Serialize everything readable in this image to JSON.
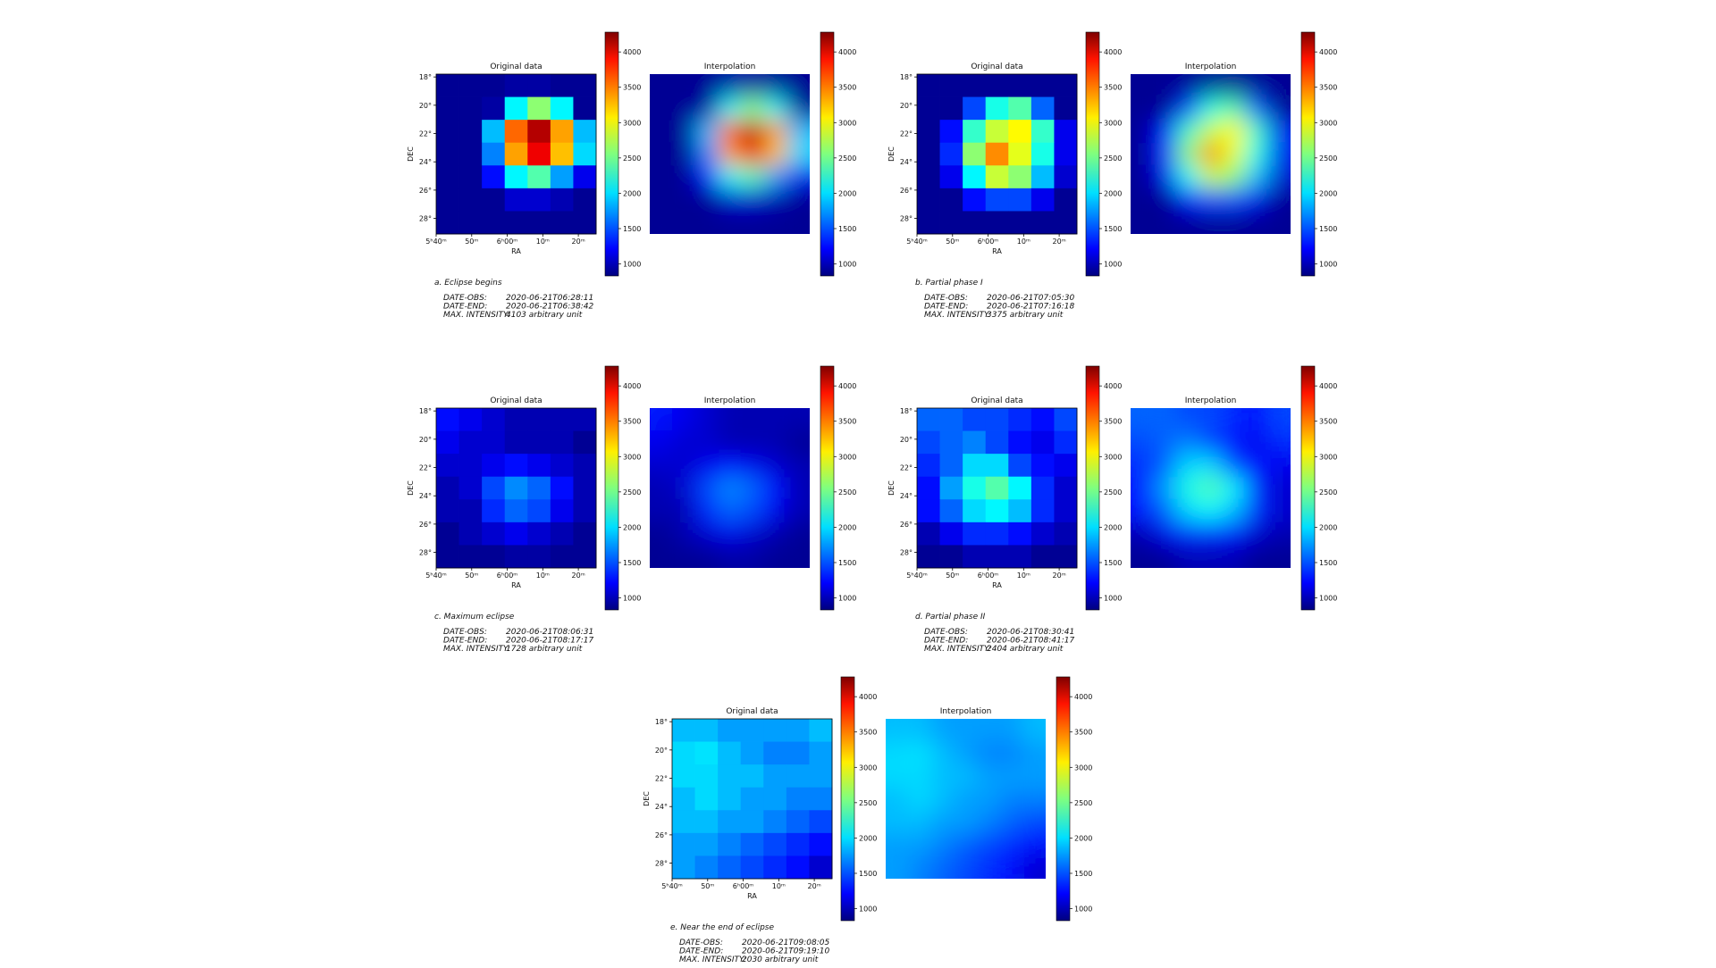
{
  "chart_data": [
    {
      "type": "heatmap",
      "title": "Original data",
      "interpolation_title": "Interpolation",
      "xlabel": "RA",
      "ylabel": "DEC",
      "xlim": [
        340,
        385
      ],
      "ylim": [
        17.8,
        29.1
      ],
      "xticks": [
        {
          "value": 340,
          "label": "5ʰ40ᵐ"
        },
        {
          "value": 350,
          "label": "50ᵐ"
        },
        {
          "value": 360,
          "label": "6ʰ00ᵐ"
        },
        {
          "value": 370,
          "label": "10ᵐ"
        },
        {
          "value": 380,
          "label": "20ᵐ"
        }
      ],
      "yticks": [
        {
          "value": 18,
          "label": "18°"
        },
        {
          "value": 20,
          "label": "20°"
        },
        {
          "value": 22,
          "label": "22°"
        },
        {
          "value": 24,
          "label": "24°"
        },
        {
          "value": 26,
          "label": "26°"
        },
        {
          "value": 28,
          "label": "28°"
        }
      ],
      "clim": [
        830,
        4280
      ],
      "cticks": [
        1000,
        1500,
        2000,
        2500,
        3000,
        3500,
        4000
      ],
      "values": [
        [
          900,
          900,
          900,
          950,
          950,
          900,
          900
        ],
        [
          900,
          900,
          950,
          2100,
          2600,
          2100,
          900
        ],
        [
          900,
          900,
          1900,
          3500,
          4103,
          3300,
          1900
        ],
        [
          900,
          900,
          1700,
          3300,
          3900,
          3200,
          2000
        ],
        [
          900,
          900,
          1300,
          2100,
          2400,
          1800,
          1200
        ],
        [
          900,
          900,
          900,
          1100,
          1100,
          1000,
          900
        ],
        [
          900,
          900,
          900,
          900,
          900,
          900,
          900
        ]
      ],
      "caption": "a. Eclipse begins",
      "info": [
        {
          "key": "DATE-OBS:",
          "value": "2020-06-21T06:28:11"
        },
        {
          "key": "DATE-END:",
          "value": "2020-06-21T06:38:42"
        },
        {
          "key": "MAX. INTENSITY:",
          "value": "4103 arbitrary unit"
        }
      ]
    },
    {
      "type": "heatmap",
      "title": "Original data",
      "interpolation_title": "Interpolation",
      "xlabel": "RA",
      "ylabel": "DEC",
      "xlim": [
        340,
        385
      ],
      "ylim": [
        17.8,
        29.1
      ],
      "xticks": [
        {
          "value": 340,
          "label": "5ʰ40ᵐ"
        },
        {
          "value": 350,
          "label": "50ᵐ"
        },
        {
          "value": 360,
          "label": "6ʰ00ᵐ"
        },
        {
          "value": 370,
          "label": "10ᵐ"
        },
        {
          "value": 380,
          "label": "20ᵐ"
        }
      ],
      "yticks": [
        {
          "value": 18,
          "label": "18°"
        },
        {
          "value": 20,
          "label": "20°"
        },
        {
          "value": 22,
          "label": "22°"
        },
        {
          "value": 24,
          "label": "24°"
        },
        {
          "value": 26,
          "label": "26°"
        },
        {
          "value": 28,
          "label": "28°"
        }
      ],
      "clim": [
        830,
        4280
      ],
      "cticks": [
        1000,
        1500,
        2000,
        2500,
        3000,
        3500,
        4000
      ],
      "values": [
        [
          900,
          900,
          900,
          900,
          900,
          900,
          900
        ],
        [
          900,
          900,
          1500,
          2200,
          2400,
          1600,
          900
        ],
        [
          900,
          1300,
          2300,
          2800,
          3000,
          2300,
          1200
        ],
        [
          900,
          1400,
          2600,
          3375,
          2900,
          2200,
          1200
        ],
        [
          900,
          1200,
          2100,
          2800,
          2600,
          1900,
          1100
        ],
        [
          900,
          900,
          1300,
          1500,
          1500,
          1200,
          900
        ],
        [
          900,
          900,
          900,
          900,
          900,
          900,
          900
        ]
      ],
      "caption": "b. Partial phase I",
      "info": [
        {
          "key": "DATE-OBS:",
          "value": "2020-06-21T07:05:30"
        },
        {
          "key": "DATE-END:",
          "value": "2020-06-21T07:16:18"
        },
        {
          "key": "MAX. INTENSITY:",
          "value": "3375 arbitrary unit"
        }
      ]
    },
    {
      "type": "heatmap",
      "title": "Original data",
      "interpolation_title": "Interpolation",
      "xlabel": "RA",
      "ylabel": "DEC",
      "xlim": [
        340,
        385
      ],
      "ylim": [
        17.8,
        29.1
      ],
      "xticks": [
        {
          "value": 340,
          "label": "5ʰ40ᵐ"
        },
        {
          "value": 350,
          "label": "50ᵐ"
        },
        {
          "value": 360,
          "label": "6ʰ00ᵐ"
        },
        {
          "value": 370,
          "label": "10ᵐ"
        },
        {
          "value": 380,
          "label": "20ᵐ"
        }
      ],
      "yticks": [
        {
          "value": 18,
          "label": "18°"
        },
        {
          "value": 20,
          "label": "20°"
        },
        {
          "value": 22,
          "label": "22°"
        },
        {
          "value": 24,
          "label": "24°"
        },
        {
          "value": 26,
          "label": "26°"
        },
        {
          "value": 28,
          "label": "28°"
        }
      ],
      "clim": [
        830,
        4280
      ],
      "cticks": [
        1000,
        1500,
        2000,
        2500,
        3000,
        3500,
        4000
      ],
      "values": [
        [
          1300,
          1200,
          1100,
          1000,
          1000,
          1000,
          1000
        ],
        [
          1200,
          1100,
          1100,
          1000,
          1000,
          1000,
          900
        ],
        [
          1100,
          1100,
          1200,
          1300,
          1200,
          1100,
          1000
        ],
        [
          1000,
          1100,
          1500,
          1728,
          1600,
          1300,
          1000
        ],
        [
          1000,
          1000,
          1400,
          1600,
          1500,
          1200,
          1000
        ],
        [
          900,
          1000,
          1100,
          1200,
          1100,
          1000,
          900
        ],
        [
          900,
          900,
          900,
          950,
          950,
          900,
          900
        ]
      ],
      "caption": "c. Maximum eclipse",
      "info": [
        {
          "key": "DATE-OBS:",
          "value": "2020-06-21T08:06:31"
        },
        {
          "key": "DATE-END:",
          "value": "2020-06-21T08:17:17"
        },
        {
          "key": "MAX. INTENSITY:",
          "value": "1728 arbitrary unit"
        }
      ]
    },
    {
      "type": "heatmap",
      "title": "Original data",
      "interpolation_title": "Interpolation",
      "xlabel": "RA",
      "ylabel": "DEC",
      "xlim": [
        340,
        385
      ],
      "ylim": [
        17.8,
        29.1
      ],
      "xticks": [
        {
          "value": 340,
          "label": "5ʰ40ᵐ"
        },
        {
          "value": 350,
          "label": "50ᵐ"
        },
        {
          "value": 360,
          "label": "6ʰ00ᵐ"
        },
        {
          "value": 370,
          "label": "10ᵐ"
        },
        {
          "value": 380,
          "label": "20ᵐ"
        }
      ],
      "yticks": [
        {
          "value": 18,
          "label": "18°"
        },
        {
          "value": 20,
          "label": "20°"
        },
        {
          "value": 22,
          "label": "22°"
        },
        {
          "value": 24,
          "label": "24°"
        },
        {
          "value": 26,
          "label": "26°"
        },
        {
          "value": 28,
          "label": "28°"
        }
      ],
      "clim": [
        830,
        4280
      ],
      "cticks": [
        1000,
        1500,
        2000,
        2500,
        3000,
        3500,
        4000
      ],
      "values": [
        [
          1600,
          1600,
          1500,
          1500,
          1400,
          1300,
          1500
        ],
        [
          1500,
          1600,
          1700,
          1500,
          1300,
          1200,
          1400
        ],
        [
          1400,
          1600,
          2000,
          2000,
          1500,
          1300,
          1200
        ],
        [
          1300,
          1800,
          2200,
          2404,
          2100,
          1400,
          1100
        ],
        [
          1300,
          1600,
          2000,
          2100,
          1900,
          1400,
          1100
        ],
        [
          1000,
          1200,
          1400,
          1400,
          1300,
          1100,
          1000
        ],
        [
          900,
          900,
          1000,
          1000,
          1000,
          900,
          900
        ]
      ],
      "caption": "d. Partial phase II",
      "info": [
        {
          "key": "DATE-OBS:",
          "value": "2020-06-21T08:30:41"
        },
        {
          "key": "DATE-END:",
          "value": "2020-06-21T08:41:17"
        },
        {
          "key": "MAX. INTENSITY:",
          "value": "2404 arbitrary unit"
        }
      ]
    },
    {
      "type": "heatmap",
      "title": "Original data",
      "interpolation_title": "Interpolation",
      "xlabel": "RA",
      "ylabel": "DEC",
      "xlim": [
        340,
        385
      ],
      "ylim": [
        17.8,
        29.1
      ],
      "xticks": [
        {
          "value": 340,
          "label": "5ʰ40ᵐ"
        },
        {
          "value": 350,
          "label": "50ᵐ"
        },
        {
          "value": 360,
          "label": "6ʰ00ᵐ"
        },
        {
          "value": 370,
          "label": "10ᵐ"
        },
        {
          "value": 380,
          "label": "20ᵐ"
        }
      ],
      "yticks": [
        {
          "value": 18,
          "label": "18°"
        },
        {
          "value": 20,
          "label": "20°"
        },
        {
          "value": 22,
          "label": "22°"
        },
        {
          "value": 24,
          "label": "24°"
        },
        {
          "value": 26,
          "label": "26°"
        },
        {
          "value": 28,
          "label": "28°"
        }
      ],
      "clim": [
        830,
        4280
      ],
      "cticks": [
        1000,
        1500,
        2000,
        2500,
        3000,
        3500,
        4000
      ],
      "values": [
        [
          1900,
          1900,
          1800,
          1800,
          1800,
          1800,
          1900
        ],
        [
          2000,
          2030,
          1900,
          1800,
          1700,
          1700,
          1800
        ],
        [
          2000,
          2000,
          1900,
          1900,
          1800,
          1800,
          1800
        ],
        [
          1900,
          2000,
          1900,
          1800,
          1800,
          1700,
          1700
        ],
        [
          1900,
          1900,
          1800,
          1800,
          1700,
          1600,
          1500
        ],
        [
          1800,
          1800,
          1700,
          1600,
          1500,
          1400,
          1300
        ],
        [
          1800,
          1700,
          1600,
          1500,
          1400,
          1300,
          1100
        ]
      ],
      "caption": "e. Near the end of eclipse",
      "info": [
        {
          "key": "DATE-OBS:",
          "value": "2020-06-21T09:08:05"
        },
        {
          "key": "DATE-END:",
          "value": "2020-06-21T09:19:10"
        },
        {
          "key": "MAX. INTENSITY:",
          "value": "2030 arbitrary unit"
        }
      ]
    }
  ]
}
